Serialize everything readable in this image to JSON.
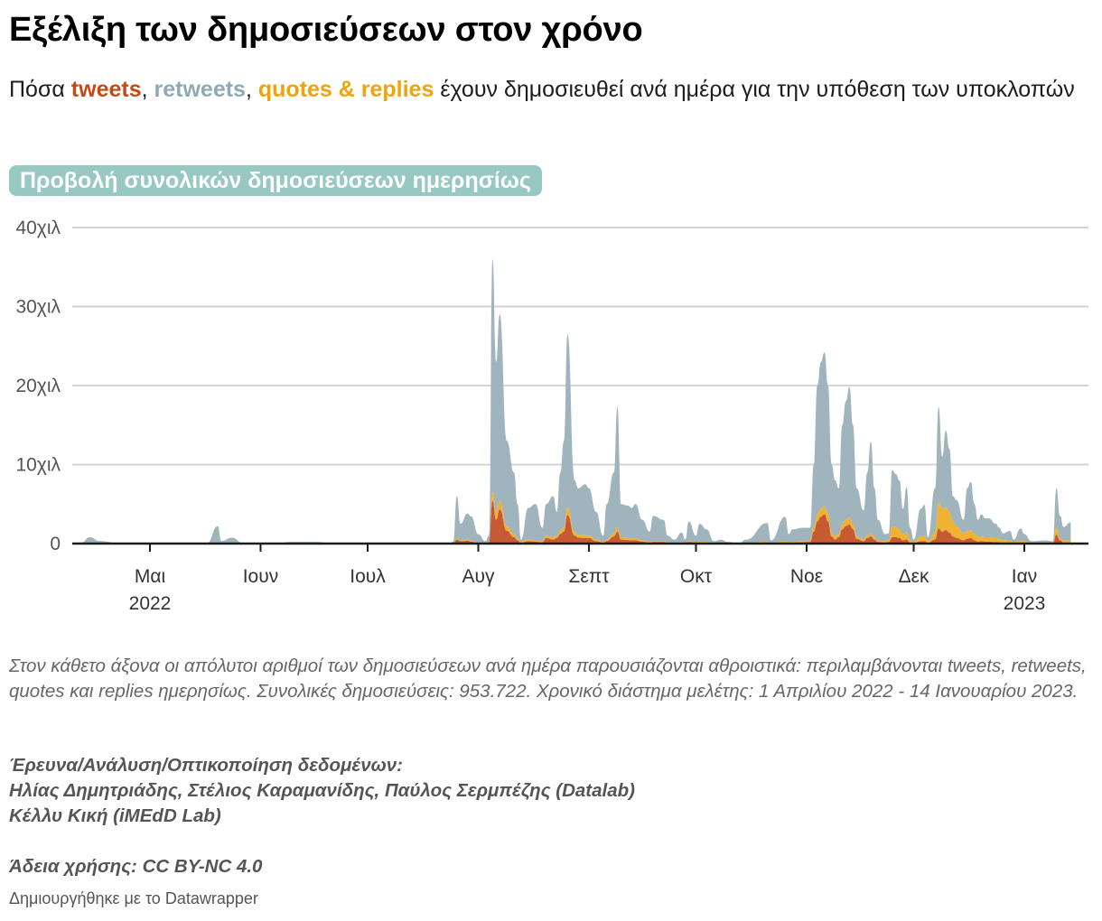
{
  "header": {
    "title": "Εξέλιξη των δημοσιεύσεων στον χρόνο",
    "subtitle_pre": "Πόσα ",
    "subtitle_kw_tweets": "tweets",
    "subtitle_sep1": ", ",
    "subtitle_kw_retweets": "retweets",
    "subtitle_sep2": ", ",
    "subtitle_kw_quotes": "quotes & replies",
    "subtitle_post": " έχουν δημοσιευθεί ανά ημέρα για την υπόθεση των υποκλοπών"
  },
  "toggle": {
    "label": "Προβολή συνολικών δημοσιεύσεων ημερησίως"
  },
  "colors": {
    "tweets": "#c55a33",
    "quotes": "#f0b232",
    "retweets": "#9fb4bd",
    "toggle_bg": "#98c8c2"
  },
  "chart_data": {
    "type": "area",
    "stacked": true,
    "title": "Εξέλιξη των δημοσιεύσεων στον χρόνο",
    "xlabel": "",
    "ylabel": "",
    "x_domain": [
      "2022-04-09",
      "2023-01-17"
    ],
    "ylim": [
      0,
      40000
    ],
    "grid": true,
    "y_ticks": [
      {
        "value": 0,
        "label": "0"
      },
      {
        "value": 10000,
        "label": "10χιλ"
      },
      {
        "value": 20000,
        "label": "20χιλ"
      },
      {
        "value": 30000,
        "label": "30χιλ"
      },
      {
        "value": 40000,
        "label": "40χιλ"
      }
    ],
    "x_ticks": [
      {
        "date": "2022-05-01",
        "label": "Μαι",
        "year": "2022"
      },
      {
        "date": "2022-06-01",
        "label": "Ιουν",
        "year": ""
      },
      {
        "date": "2022-07-01",
        "label": "Ιουλ",
        "year": ""
      },
      {
        "date": "2022-08-01",
        "label": "Αυγ",
        "year": ""
      },
      {
        "date": "2022-09-01",
        "label": "Σεπτ",
        "year": ""
      },
      {
        "date": "2022-10-01",
        "label": "Οκτ",
        "year": ""
      },
      {
        "date": "2022-11-01",
        "label": "Νοε",
        "year": ""
      },
      {
        "date": "2022-12-01",
        "label": "Δεκ",
        "year": ""
      },
      {
        "date": "2023-01-01",
        "label": "Ιαν",
        "year": "2023"
      }
    ],
    "series_order": [
      "tweets",
      "quotes & replies",
      "retweets"
    ],
    "columns": [
      "date",
      "tweets",
      "quotes_replies",
      "retweets"
    ],
    "points": [
      [
        "2022-04-09",
        0,
        0,
        0
      ],
      [
        "2022-04-12",
        0,
        0,
        150
      ],
      [
        "2022-04-14",
        20,
        10,
        770
      ],
      [
        "2022-04-17",
        10,
        5,
        300
      ],
      [
        "2022-04-22",
        0,
        0,
        100
      ],
      [
        "2022-05-09",
        0,
        0,
        100
      ],
      [
        "2022-05-17",
        0,
        0,
        50
      ],
      [
        "2022-05-20",
        80,
        20,
        2100
      ],
      [
        "2022-05-21",
        20,
        10,
        300
      ],
      [
        "2022-05-24",
        30,
        10,
        700
      ],
      [
        "2022-05-27",
        0,
        0,
        100
      ],
      [
        "2022-06-05",
        0,
        0,
        50
      ],
      [
        "2022-06-10",
        10,
        0,
        200
      ],
      [
        "2022-06-16",
        10,
        0,
        200
      ],
      [
        "2022-06-22",
        0,
        0,
        50
      ],
      [
        "2022-07-15",
        0,
        0,
        50
      ],
      [
        "2022-07-24",
        0,
        0,
        0
      ],
      [
        "2022-07-25",
        50,
        20,
        200
      ],
      [
        "2022-07-26",
        500,
        200,
        5300
      ],
      [
        "2022-07-27",
        300,
        100,
        2100
      ],
      [
        "2022-07-29",
        350,
        150,
        3300
      ],
      [
        "2022-07-30",
        250,
        100,
        3100
      ],
      [
        "2022-08-01",
        50,
        30,
        1100
      ],
      [
        "2022-08-03",
        10,
        10,
        280
      ],
      [
        "2022-08-04",
        200,
        100,
        700
      ],
      [
        "2022-08-05",
        5400,
        1100,
        29500
      ],
      [
        "2022-08-06",
        3000,
        1000,
        19000
      ],
      [
        "2022-08-07",
        4300,
        1100,
        23600
      ],
      [
        "2022-08-09",
        1600,
        600,
        10800
      ],
      [
        "2022-08-11",
        800,
        400,
        7800
      ],
      [
        "2022-08-12",
        400,
        200,
        4400
      ],
      [
        "2022-08-13",
        100,
        80,
        320
      ],
      [
        "2022-08-15",
        300,
        200,
        4000
      ],
      [
        "2022-08-17",
        250,
        150,
        4600
      ],
      [
        "2022-08-19",
        150,
        100,
        1750
      ],
      [
        "2022-08-20",
        700,
        300,
        4000
      ],
      [
        "2022-08-22",
        500,
        300,
        5200
      ],
      [
        "2022-08-23",
        700,
        300,
        3000
      ],
      [
        "2022-08-24",
        1200,
        500,
        7300
      ],
      [
        "2022-08-25",
        1500,
        500,
        11000
      ],
      [
        "2022-08-26",
        3600,
        1000,
        21900
      ],
      [
        "2022-08-28",
        1000,
        400,
        6600
      ],
      [
        "2022-08-29",
        750,
        350,
        5900
      ],
      [
        "2022-08-31",
        700,
        350,
        6450
      ],
      [
        "2022-09-01",
        700,
        300,
        6000
      ],
      [
        "2022-09-03",
        300,
        200,
        3500
      ],
      [
        "2022-09-05",
        100,
        100,
        800
      ],
      [
        "2022-09-06",
        300,
        200,
        4500
      ],
      [
        "2022-09-08",
        900,
        400,
        7700
      ],
      [
        "2022-09-09",
        1500,
        500,
        15300
      ],
      [
        "2022-09-10",
        500,
        300,
        4200
      ],
      [
        "2022-09-12",
        450,
        250,
        4100
      ],
      [
        "2022-09-13",
        400,
        250,
        3850
      ],
      [
        "2022-09-14",
        400,
        250,
        4350
      ],
      [
        "2022-09-16",
        250,
        150,
        2600
      ],
      [
        "2022-09-18",
        100,
        100,
        1300
      ],
      [
        "2022-09-19",
        200,
        150,
        3150
      ],
      [
        "2022-09-22",
        200,
        150,
        2650
      ],
      [
        "2022-09-23",
        80,
        70,
        850
      ],
      [
        "2022-09-25",
        50,
        50,
        400
      ],
      [
        "2022-09-27",
        100,
        100,
        1200
      ],
      [
        "2022-09-28",
        50,
        50,
        400
      ],
      [
        "2022-09-29",
        200,
        100,
        2500
      ],
      [
        "2022-10-01",
        80,
        70,
        850
      ],
      [
        "2022-10-02",
        150,
        100,
        2250
      ],
      [
        "2022-10-04",
        100,
        100,
        1600
      ],
      [
        "2022-10-06",
        30,
        20,
        250
      ],
      [
        "2022-10-08",
        40,
        30,
        430
      ],
      [
        "2022-10-10",
        20,
        20,
        160
      ],
      [
        "2022-10-13",
        0,
        0,
        50
      ],
      [
        "2022-10-15",
        40,
        30,
        430
      ],
      [
        "2022-10-21",
        150,
        100,
        2350
      ],
      [
        "2022-10-22",
        30,
        30,
        340
      ],
      [
        "2022-10-26",
        150,
        150,
        3100
      ],
      [
        "2022-10-27",
        80,
        80,
        1040
      ],
      [
        "2022-10-28",
        100,
        100,
        1600
      ],
      [
        "2022-10-31",
        150,
        150,
        1700
      ],
      [
        "2022-11-02",
        200,
        200,
        1600
      ],
      [
        "2022-11-03",
        1500,
        600,
        7900
      ],
      [
        "2022-11-04",
        2800,
        900,
        16300
      ],
      [
        "2022-11-05",
        3400,
        1000,
        18600
      ],
      [
        "2022-11-06",
        3700,
        1000,
        19500
      ],
      [
        "2022-11-07",
        2800,
        900,
        16300
      ],
      [
        "2022-11-08",
        900,
        500,
        8600
      ],
      [
        "2022-11-09",
        500,
        400,
        7100
      ],
      [
        "2022-11-10",
        800,
        400,
        5800
      ],
      [
        "2022-11-11",
        1800,
        700,
        12500
      ],
      [
        "2022-11-12",
        2200,
        800,
        15000
      ],
      [
        "2022-11-13",
        2400,
        900,
        16500
      ],
      [
        "2022-11-14",
        1800,
        700,
        12500
      ],
      [
        "2022-11-15",
        600,
        300,
        6100
      ],
      [
        "2022-11-17",
        300,
        200,
        3700
      ],
      [
        "2022-11-18",
        700,
        300,
        8000
      ],
      [
        "2022-11-19",
        900,
        400,
        11600
      ],
      [
        "2022-11-20",
        500,
        300,
        6200
      ],
      [
        "2022-11-21",
        200,
        200,
        2600
      ],
      [
        "2022-11-23",
        100,
        200,
        900
      ],
      [
        "2022-11-24",
        200,
        300,
        800
      ],
      [
        "2022-11-25",
        800,
        1300,
        7200
      ],
      [
        "2022-11-26",
        800,
        1300,
        6700
      ],
      [
        "2022-11-27",
        700,
        1100,
        6200
      ],
      [
        "2022-11-28",
        400,
        800,
        3200
      ],
      [
        "2022-11-29",
        500,
        900,
        5700
      ],
      [
        "2022-11-30",
        100,
        300,
        1600
      ],
      [
        "2022-12-01",
        50,
        150,
        300
      ],
      [
        "2022-12-03",
        300,
        600,
        3500
      ],
      [
        "2022-12-04",
        300,
        700,
        3900
      ],
      [
        "2022-12-05",
        100,
        200,
        500
      ],
      [
        "2022-12-07",
        500,
        900,
        5600
      ],
      [
        "2022-12-08",
        1900,
        3300,
        12100
      ],
      [
        "2022-12-09",
        1500,
        2900,
        6600
      ],
      [
        "2022-12-10",
        1700,
        2900,
        9700
      ],
      [
        "2022-12-11",
        1400,
        2600,
        8000
      ],
      [
        "2022-12-12",
        900,
        1900,
        3200
      ],
      [
        "2022-12-13",
        700,
        1500,
        3300
      ],
      [
        "2022-12-15",
        400,
        900,
        1700
      ],
      [
        "2022-12-16",
        600,
        900,
        5500
      ],
      [
        "2022-12-17",
        700,
        1000,
        6100
      ],
      [
        "2022-12-18",
        400,
        800,
        3800
      ],
      [
        "2022-12-19",
        250,
        600,
        2150
      ],
      [
        "2022-12-20",
        300,
        600,
        2800
      ],
      [
        "2022-12-21",
        250,
        550,
        2400
      ],
      [
        "2022-12-22",
        250,
        550,
        2400
      ],
      [
        "2022-12-24",
        200,
        500,
        1800
      ],
      [
        "2022-12-25",
        150,
        400,
        1450
      ],
      [
        "2022-12-26",
        100,
        350,
        850
      ],
      [
        "2022-12-28",
        100,
        300,
        1200
      ],
      [
        "2022-12-29",
        50,
        150,
        300
      ],
      [
        "2022-12-31",
        100,
        300,
        1500
      ],
      [
        "2023-01-01",
        80,
        220,
        900
      ],
      [
        "2023-01-03",
        30,
        100,
        170
      ],
      [
        "2023-01-07",
        30,
        120,
        250
      ],
      [
        "2023-01-09",
        30,
        100,
        170
      ],
      [
        "2023-01-10",
        1100,
        900,
        5000
      ],
      [
        "2023-01-11",
        400,
        300,
        2800
      ],
      [
        "2023-01-12",
        150,
        200,
        1750
      ],
      [
        "2023-01-14",
        150,
        250,
        2300
      ]
    ]
  },
  "footer": {
    "notes": "Στον κάθετο άξονα οι απόλυτοι αριθμοί των δημοσιεύσεων ανά ημέρα παρουσιάζονται αθροιστικά: περιλαμβάνονται tweets, retweets, quotes και replies ημερησίως. Συνολικές δημοσιεύσεις: 953.722. Χρονικό διάστημα μελέτης: 1 Απριλίου 2022 - 14 Ιανουαρίου 2023.",
    "credits_heading": "Έρευνα/Ανάλυση/Οπτικοποίηση δεδομένων:",
    "credits_line1": "Ηλίας Δημητριάδης, Στέλιος Καραμανίδης, Παύλος Σερμπέζης (Datalab)",
    "credits_line2": "Κέλλυ Κική (iMEdD Lab)",
    "license": "Άδεια χρήσης: CC BY-NC 4.0",
    "made_with": "Δημιουργήθηκε με το Datawrapper"
  }
}
